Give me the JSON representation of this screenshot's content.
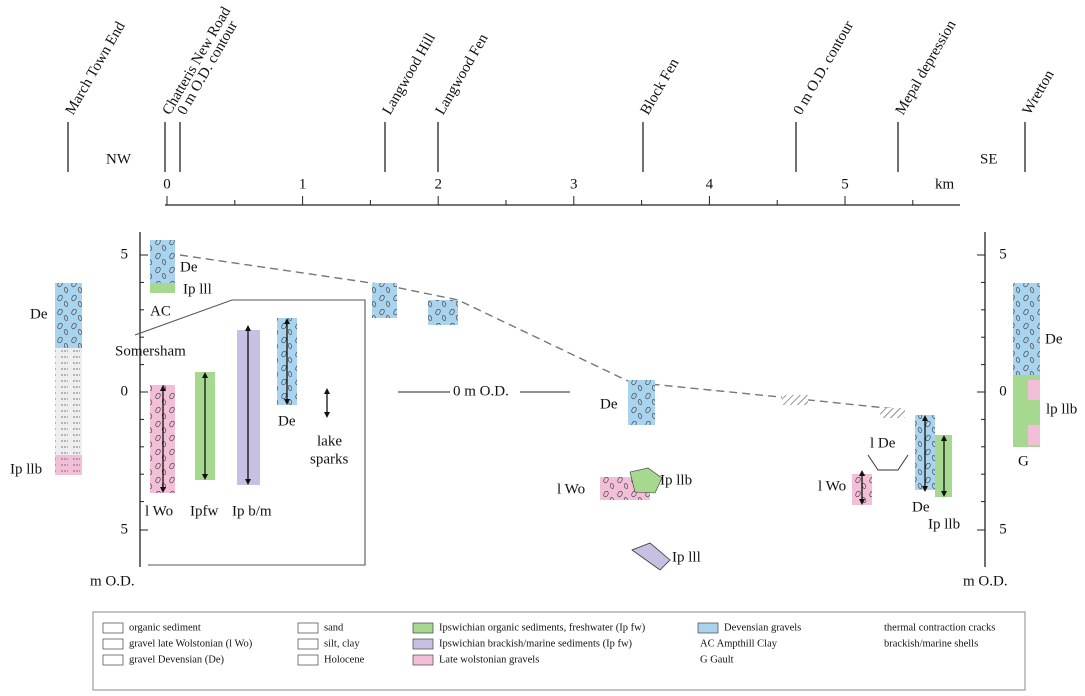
{
  "sites": [
    "March Town End",
    "Chatteris New Road",
    "0 m O.D. contour",
    "Langwood Hill",
    "Langwood Fen",
    "Block Fen",
    "0 m O.D. contour",
    "Mepal depression",
    "Wretton"
  ],
  "directions": [
    "NW",
    "SE"
  ],
  "distance_axis": {
    "ticks": [
      "0",
      "1",
      "2",
      "3",
      "4",
      "5"
    ],
    "unit": "km"
  },
  "left_axis": {
    "ticks": [
      "5",
      "0",
      "5"
    ],
    "unit": "m O.D."
  },
  "right_axis": {
    "ticks": [
      "5",
      "0",
      "5"
    ],
    "unit": "m O.D."
  },
  "labels": [
    "De",
    "Ip lll",
    "AC",
    "De",
    "Ip llb",
    "Somersham",
    "l Wo",
    "Ipfw",
    "Ip b/m",
    "De",
    "lake",
    "sparks",
    "0 m O.D.",
    "De",
    "l Wo",
    "Ip llb",
    "Ip lll",
    "l De",
    "l Wo",
    "De",
    "Ip llb",
    "De",
    "lp llb",
    "G"
  ],
  "legend": [
    [
      "organic sediment",
      "gravel late Wolstonian (l Wo)",
      "gravel Devensian (De)"
    ],
    [
      "sand",
      "silt, clay",
      "Holocene"
    ],
    [
      "Ipswichian organic sediments, freshwater (Ip fw)",
      "Ipswichian brackish/marine sediments (Ip fw)",
      "Late wolstonian gravels"
    ],
    [
      "Devensian gravels",
      "AC Ampthill Clay",
      "G Gault"
    ],
    [
      "thermal contraction cracks",
      "brackish/marine shells"
    ]
  ]
}
